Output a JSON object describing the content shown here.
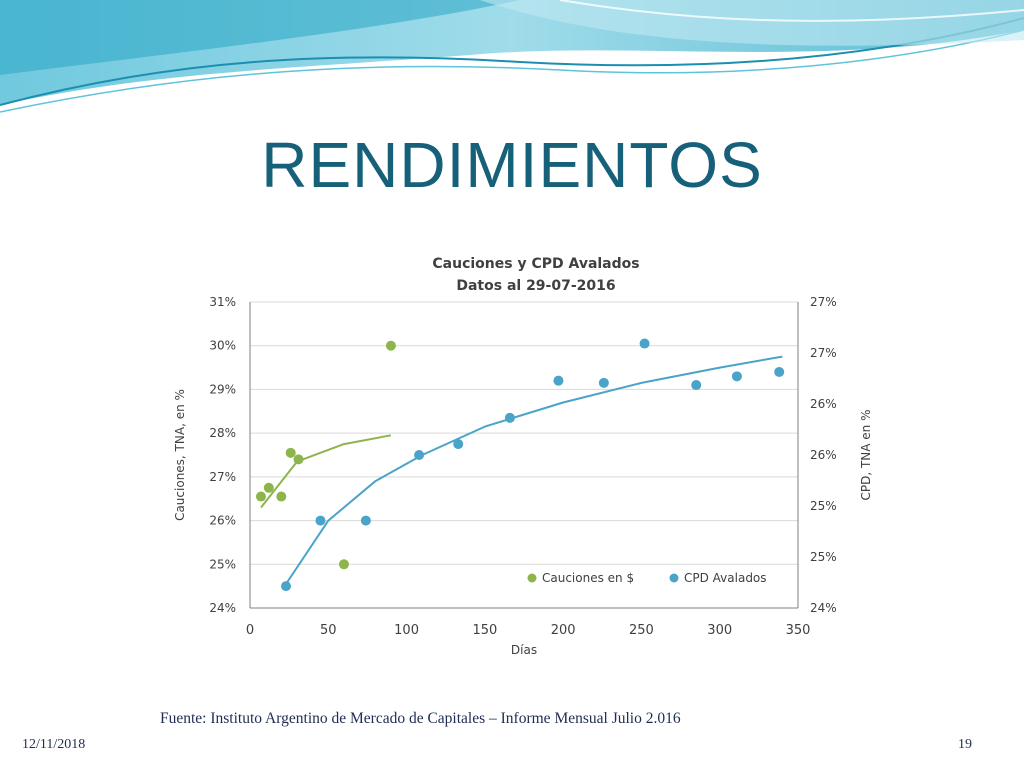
{
  "slide": {
    "title": "RENDIMIENTOS",
    "source": "Fuente: Instituto Argentino de Mercado de Capitales – Informe Mensual Julio 2.016",
    "date": "12/11/2018",
    "page": "19"
  },
  "colors": {
    "title": "#17607a",
    "cauciones": "#8db54b",
    "cpd": "#4aa3c8",
    "grid": "#d9d9d9"
  },
  "chart_data": {
    "type": "scatter",
    "title": "Cauciones y CPD Avalados",
    "subtitle": "Datos al 29-07-2016",
    "xlabel": "Días",
    "ylabel_left": "Cauciones, TNA, en %",
    "ylabel_right": "CPD, TNA en %",
    "xlim": [
      0,
      350
    ],
    "ylim_left": [
      24,
      31
    ],
    "x_ticks": [
      "0",
      "50",
      "100",
      "150",
      "200",
      "250",
      "300",
      "350"
    ],
    "y_left_ticks": [
      "24%",
      "25%",
      "26%",
      "27%",
      "28%",
      "29%",
      "30%",
      "31%"
    ],
    "y_right_ticks": [
      "24%",
      "25%",
      "25%",
      "26%",
      "26%",
      "27%",
      "27%"
    ],
    "grid": true,
    "legend_position": "bottom-right",
    "series": [
      {
        "name": "Cauciones en $",
        "color": "#8db54b",
        "x": [
          7,
          12,
          20,
          26,
          31,
          60,
          90
        ],
        "y": [
          26.55,
          26.75,
          26.55,
          27.55,
          27.4,
          25.0,
          30.0
        ],
        "trend": {
          "x": [
            7,
            30,
            60,
            90
          ],
          "y": [
            26.3,
            27.35,
            27.75,
            27.95
          ]
        }
      },
      {
        "name": "CPD Avalados",
        "color": "#4aa3c8",
        "x": [
          23,
          45,
          74,
          108,
          133,
          166,
          197,
          226,
          252,
          285,
          311,
          338
        ],
        "y": [
          24.5,
          26.0,
          26.0,
          27.5,
          27.75,
          28.35,
          29.2,
          29.15,
          30.05,
          29.1,
          29.3,
          29.4
        ],
        "trend": {
          "x": [
            23,
            50,
            80,
            110,
            150,
            200,
            250,
            300,
            340
          ],
          "y": [
            24.55,
            26.0,
            26.9,
            27.5,
            28.15,
            28.7,
            29.15,
            29.5,
            29.75
          ]
        }
      }
    ]
  }
}
